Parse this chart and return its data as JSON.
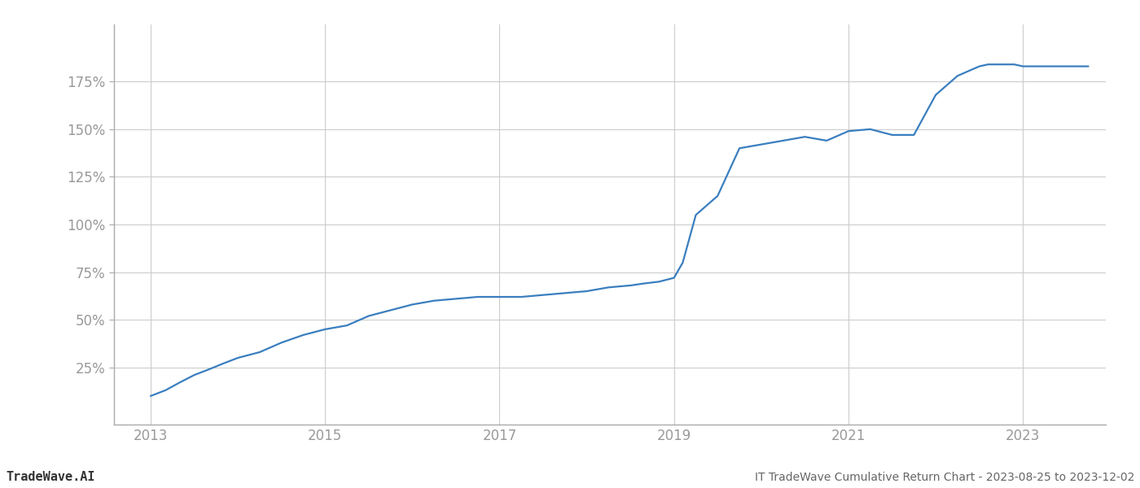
{
  "title": "IT TradeWave Cumulative Return Chart - 2023-08-25 to 2023-12-02",
  "watermark": "TradeWave.AI",
  "line_color": "#3a7ebf",
  "background_color": "#ffffff",
  "grid_color": "#cccccc",
  "x_values": [
    2013.0,
    2013.17,
    2013.33,
    2013.5,
    2013.67,
    2013.83,
    2014.0,
    2014.25,
    2014.5,
    2014.75,
    2015.0,
    2015.25,
    2015.5,
    2015.75,
    2016.0,
    2016.25,
    2016.5,
    2016.75,
    2017.0,
    2017.25,
    2017.5,
    2017.75,
    2018.0,
    2018.25,
    2018.5,
    2018.65,
    2018.83,
    2019.0,
    2019.1,
    2019.25,
    2019.5,
    2019.75,
    2020.0,
    2020.25,
    2020.5,
    2020.75,
    2021.0,
    2021.25,
    2021.5,
    2021.75,
    2022.0,
    2022.25,
    2022.5,
    2022.6,
    2022.75,
    2022.9,
    2023.0,
    2023.5,
    2023.75
  ],
  "y_values": [
    10,
    13,
    17,
    21,
    24,
    27,
    30,
    33,
    38,
    42,
    45,
    47,
    52,
    55,
    58,
    60,
    61,
    62,
    62,
    62,
    63,
    64,
    65,
    67,
    68,
    69,
    70,
    72,
    80,
    105,
    115,
    140,
    142,
    144,
    146,
    144,
    149,
    150,
    147,
    147,
    168,
    178,
    183,
    184,
    184,
    184,
    183,
    183,
    183
  ],
  "yticks": [
    25,
    50,
    75,
    100,
    125,
    150,
    175
  ],
  "xticks": [
    2013,
    2015,
    2017,
    2019,
    2021,
    2023
  ],
  "xlim": [
    2012.58,
    2023.95
  ],
  "ylim": [
    -5,
    205
  ],
  "line_width": 1.6,
  "title_fontsize": 10,
  "watermark_fontsize": 11,
  "tick_label_color": "#999999",
  "tick_fontsize": 12,
  "spine_color": "#aaaaaa"
}
